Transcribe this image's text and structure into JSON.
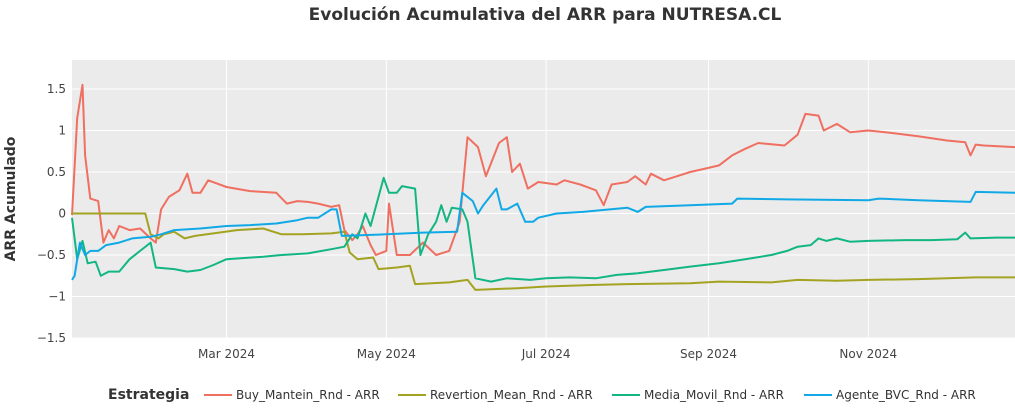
{
  "chart_data": {
    "type": "line",
    "title": "Evolución Acumulativa del ARR para NUTRESA.CL",
    "xlabel": "",
    "ylabel": "ARR Acumulado",
    "ylim": [
      -1.5,
      1.85
    ],
    "xlim": [
      "2024-01-02",
      "2024-12-27"
    ],
    "yticks": [
      -1.5,
      -1,
      -0.5,
      0,
      0.5,
      1,
      1.5
    ],
    "ytick_labels": [
      "−1.5",
      "−1",
      "−0.5",
      "0",
      "0.5",
      "1",
      "1.5"
    ],
    "xticks": [
      "2024-03-01",
      "2024-05-01",
      "2024-07-01",
      "2024-09-01",
      "2024-11-01"
    ],
    "xtick_labels": [
      "Mar 2024",
      "May 2024",
      "Jul 2024",
      "Sep 2024",
      "Nov 2024"
    ],
    "grid": true,
    "legend_title": "Estrategia",
    "legend_position": "bottom",
    "series": [
      {
        "name": "Buy_Mantein_Rnd - ARR",
        "color": "#EF6F61",
        "points": [
          [
            "2024-01-02",
            -0.02
          ],
          [
            "2024-01-04",
            1.15
          ],
          [
            "2024-01-06",
            1.55
          ],
          [
            "2024-01-07",
            0.7
          ],
          [
            "2024-01-09",
            0.18
          ],
          [
            "2024-01-12",
            0.15
          ],
          [
            "2024-01-14",
            -0.35
          ],
          [
            "2024-01-16",
            -0.2
          ],
          [
            "2024-01-18",
            -0.3
          ],
          [
            "2024-01-20",
            -0.15
          ],
          [
            "2024-01-24",
            -0.2
          ],
          [
            "2024-01-28",
            -0.18
          ],
          [
            "2024-02-01",
            -0.3
          ],
          [
            "2024-02-03",
            -0.35
          ],
          [
            "2024-02-05",
            0.05
          ],
          [
            "2024-02-08",
            0.2
          ],
          [
            "2024-02-12",
            0.28
          ],
          [
            "2024-02-15",
            0.48
          ],
          [
            "2024-02-17",
            0.25
          ],
          [
            "2024-02-20",
            0.25
          ],
          [
            "2024-02-23",
            0.4
          ],
          [
            "2024-03-01",
            0.32
          ],
          [
            "2024-03-10",
            0.27
          ],
          [
            "2024-03-20",
            0.25
          ],
          [
            "2024-03-24",
            0.12
          ],
          [
            "2024-03-28",
            0.15
          ],
          [
            "2024-04-01",
            0.14
          ],
          [
            "2024-04-05",
            0.12
          ],
          [
            "2024-04-10",
            0.08
          ],
          [
            "2024-04-13",
            0.1
          ],
          [
            "2024-04-15",
            -0.2
          ],
          [
            "2024-04-18",
            -0.32
          ],
          [
            "2024-04-20",
            -0.25
          ],
          [
            "2024-04-22",
            -0.15
          ],
          [
            "2024-04-25",
            -0.38
          ],
          [
            "2024-04-27",
            -0.5
          ],
          [
            "2024-05-01",
            -0.45
          ],
          [
            "2024-05-02",
            0.12
          ],
          [
            "2024-05-05",
            -0.5
          ],
          [
            "2024-05-10",
            -0.5
          ],
          [
            "2024-05-15",
            -0.35
          ],
          [
            "2024-05-20",
            -0.5
          ],
          [
            "2024-05-25",
            -0.45
          ],
          [
            "2024-05-29",
            -0.1
          ],
          [
            "2024-06-01",
            0.92
          ],
          [
            "2024-06-05",
            0.8
          ],
          [
            "2024-06-08",
            0.45
          ],
          [
            "2024-06-13",
            0.85
          ],
          [
            "2024-06-16",
            0.92
          ],
          [
            "2024-06-18",
            0.5
          ],
          [
            "2024-06-21",
            0.6
          ],
          [
            "2024-06-24",
            0.3
          ],
          [
            "2024-06-28",
            0.38
          ],
          [
            "2024-07-05",
            0.35
          ],
          [
            "2024-07-08",
            0.4
          ],
          [
            "2024-07-14",
            0.35
          ],
          [
            "2024-07-20",
            0.28
          ],
          [
            "2024-07-23",
            0.1
          ],
          [
            "2024-07-26",
            0.35
          ],
          [
            "2024-08-01",
            0.38
          ],
          [
            "2024-08-04",
            0.45
          ],
          [
            "2024-08-08",
            0.35
          ],
          [
            "2024-08-10",
            0.48
          ],
          [
            "2024-08-15",
            0.4
          ],
          [
            "2024-08-20",
            0.45
          ],
          [
            "2024-08-25",
            0.5
          ],
          [
            "2024-09-01",
            0.55
          ],
          [
            "2024-09-05",
            0.58
          ],
          [
            "2024-09-10",
            0.7
          ],
          [
            "2024-09-15",
            0.78
          ],
          [
            "2024-09-20",
            0.85
          ],
          [
            "2024-09-30",
            0.82
          ],
          [
            "2024-10-05",
            0.95
          ],
          [
            "2024-10-08",
            1.2
          ],
          [
            "2024-10-13",
            1.18
          ],
          [
            "2024-10-15",
            1.0
          ],
          [
            "2024-10-20",
            1.08
          ],
          [
            "2024-10-25",
            0.98
          ],
          [
            "2024-11-01",
            1.0
          ],
          [
            "2024-11-10",
            0.97
          ],
          [
            "2024-11-20",
            0.93
          ],
          [
            "2024-12-01",
            0.88
          ],
          [
            "2024-12-08",
            0.86
          ],
          [
            "2024-12-10",
            0.7
          ],
          [
            "2024-12-12",
            0.83
          ],
          [
            "2024-12-15",
            0.82
          ],
          [
            "2024-12-27",
            0.8
          ]
        ]
      },
      {
        "name": "Revertion_Mean_Rnd - ARR",
        "color": "#A3A321",
        "points": [
          [
            "2024-01-02",
            0.0
          ],
          [
            "2024-01-10",
            0.0
          ],
          [
            "2024-01-20",
            0.0
          ],
          [
            "2024-01-30",
            0.0
          ],
          [
            "2024-02-01",
            -0.25
          ],
          [
            "2024-02-04",
            -0.3
          ],
          [
            "2024-02-06",
            -0.25
          ],
          [
            "2024-02-10",
            -0.22
          ],
          [
            "2024-02-14",
            -0.3
          ],
          [
            "2024-02-18",
            -0.27
          ],
          [
            "2024-02-25",
            -0.24
          ],
          [
            "2024-03-05",
            -0.2
          ],
          [
            "2024-03-15",
            -0.18
          ],
          [
            "2024-03-22",
            -0.25
          ],
          [
            "2024-03-30",
            -0.25
          ],
          [
            "2024-04-10",
            -0.24
          ],
          [
            "2024-04-15",
            -0.22
          ],
          [
            "2024-04-17",
            -0.47
          ],
          [
            "2024-04-20",
            -0.55
          ],
          [
            "2024-04-26",
            -0.53
          ],
          [
            "2024-04-28",
            -0.67
          ],
          [
            "2024-05-05",
            -0.65
          ],
          [
            "2024-05-10",
            -0.63
          ],
          [
            "2024-05-12",
            -0.85
          ],
          [
            "2024-05-25",
            -0.83
          ],
          [
            "2024-06-01",
            -0.8
          ],
          [
            "2024-06-04",
            -0.92
          ],
          [
            "2024-06-20",
            -0.9
          ],
          [
            "2024-07-01",
            -0.88
          ],
          [
            "2024-07-20",
            -0.86
          ],
          [
            "2024-08-01",
            -0.85
          ],
          [
            "2024-08-25",
            -0.84
          ],
          [
            "2024-09-05",
            -0.82
          ],
          [
            "2024-09-25",
            -0.83
          ],
          [
            "2024-10-05",
            -0.8
          ],
          [
            "2024-10-20",
            -0.81
          ],
          [
            "2024-11-01",
            -0.8
          ],
          [
            "2024-11-20",
            -0.79
          ],
          [
            "2024-12-01",
            -0.78
          ],
          [
            "2024-12-12",
            -0.77
          ],
          [
            "2024-12-27",
            -0.77
          ]
        ]
      },
      {
        "name": "Media_Movil_Rnd - ARR",
        "color": "#12B683",
        "points": [
          [
            "2024-01-02",
            -0.05
          ],
          [
            "2024-01-04",
            -0.55
          ],
          [
            "2024-01-06",
            -0.33
          ],
          [
            "2024-01-08",
            -0.6
          ],
          [
            "2024-01-11",
            -0.58
          ],
          [
            "2024-01-13",
            -0.75
          ],
          [
            "2024-01-16",
            -0.7
          ],
          [
            "2024-01-20",
            -0.7
          ],
          [
            "2024-01-24",
            -0.55
          ],
          [
            "2024-01-28",
            -0.45
          ],
          [
            "2024-02-01",
            -0.35
          ],
          [
            "2024-02-03",
            -0.65
          ],
          [
            "2024-02-10",
            -0.67
          ],
          [
            "2024-02-15",
            -0.7
          ],
          [
            "2024-02-20",
            -0.68
          ],
          [
            "2024-02-25",
            -0.62
          ],
          [
            "2024-03-01",
            -0.55
          ],
          [
            "2024-03-15",
            -0.52
          ],
          [
            "2024-03-22",
            -0.5
          ],
          [
            "2024-04-01",
            -0.48
          ],
          [
            "2024-04-10",
            -0.43
          ],
          [
            "2024-04-15",
            -0.4
          ],
          [
            "2024-04-18",
            -0.25
          ],
          [
            "2024-04-20",
            -0.3
          ],
          [
            "2024-04-23",
            0.0
          ],
          [
            "2024-04-25",
            -0.15
          ],
          [
            "2024-04-28",
            0.2
          ],
          [
            "2024-04-30",
            0.43
          ],
          [
            "2024-05-02",
            0.25
          ],
          [
            "2024-05-05",
            0.25
          ],
          [
            "2024-05-07",
            0.33
          ],
          [
            "2024-05-12",
            0.3
          ],
          [
            "2024-05-14",
            -0.5
          ],
          [
            "2024-05-17",
            -0.25
          ],
          [
            "2024-05-20",
            -0.1
          ],
          [
            "2024-05-22",
            0.1
          ],
          [
            "2024-05-24",
            -0.1
          ],
          [
            "2024-05-26",
            0.07
          ],
          [
            "2024-05-30",
            0.05
          ],
          [
            "2024-06-01",
            -0.1
          ],
          [
            "2024-06-04",
            -0.78
          ],
          [
            "2024-06-10",
            -0.82
          ],
          [
            "2024-06-16",
            -0.78
          ],
          [
            "2024-06-25",
            -0.8
          ],
          [
            "2024-07-01",
            -0.78
          ],
          [
            "2024-07-10",
            -0.77
          ],
          [
            "2024-07-20",
            -0.78
          ],
          [
            "2024-07-28",
            -0.74
          ],
          [
            "2024-08-05",
            -0.72
          ],
          [
            "2024-08-15",
            -0.68
          ],
          [
            "2024-08-25",
            -0.64
          ],
          [
            "2024-09-05",
            -0.6
          ],
          [
            "2024-09-15",
            -0.55
          ],
          [
            "2024-09-25",
            -0.5
          ],
          [
            "2024-10-01",
            -0.45
          ],
          [
            "2024-10-05",
            -0.4
          ],
          [
            "2024-10-10",
            -0.38
          ],
          [
            "2024-10-13",
            -0.3
          ],
          [
            "2024-10-16",
            -0.33
          ],
          [
            "2024-10-20",
            -0.3
          ],
          [
            "2024-10-25",
            -0.34
          ],
          [
            "2024-11-01",
            -0.33
          ],
          [
            "2024-11-15",
            -0.32
          ],
          [
            "2024-11-25",
            -0.32
          ],
          [
            "2024-12-05",
            -0.31
          ],
          [
            "2024-12-08",
            -0.23
          ],
          [
            "2024-12-10",
            -0.3
          ],
          [
            "2024-12-20",
            -0.29
          ],
          [
            "2024-12-27",
            -0.29
          ]
        ]
      },
      {
        "name": "Agente_BVC_Rnd - ARR",
        "color": "#10A9E6",
        "points": [
          [
            "2024-01-02",
            -0.8
          ],
          [
            "2024-01-03",
            -0.75
          ],
          [
            "2024-01-05",
            -0.35
          ],
          [
            "2024-01-07",
            -0.5
          ],
          [
            "2024-01-09",
            -0.45
          ],
          [
            "2024-01-12",
            -0.45
          ],
          [
            "2024-01-15",
            -0.38
          ],
          [
            "2024-01-20",
            -0.35
          ],
          [
            "2024-01-25",
            -0.3
          ],
          [
            "2024-02-01",
            -0.28
          ],
          [
            "2024-02-05",
            -0.25
          ],
          [
            "2024-02-10",
            -0.2
          ],
          [
            "2024-02-20",
            -0.18
          ],
          [
            "2024-03-01",
            -0.15
          ],
          [
            "2024-03-10",
            -0.14
          ],
          [
            "2024-03-20",
            -0.12
          ],
          [
            "2024-03-28",
            -0.08
          ],
          [
            "2024-04-01",
            -0.05
          ],
          [
            "2024-04-05",
            -0.05
          ],
          [
            "2024-04-10",
            0.05
          ],
          [
            "2024-04-12",
            0.05
          ],
          [
            "2024-04-14",
            -0.27
          ],
          [
            "2024-05-01",
            -0.25
          ],
          [
            "2024-05-15",
            -0.23
          ],
          [
            "2024-05-28",
            -0.22
          ],
          [
            "2024-05-30",
            0.25
          ],
          [
            "2024-06-03",
            0.15
          ],
          [
            "2024-06-05",
            0.0
          ],
          [
            "2024-06-07",
            0.1
          ],
          [
            "2024-06-12",
            0.3
          ],
          [
            "2024-06-14",
            0.05
          ],
          [
            "2024-06-16",
            0.05
          ],
          [
            "2024-06-20",
            0.12
          ],
          [
            "2024-06-23",
            -0.1
          ],
          [
            "2024-06-26",
            -0.1
          ],
          [
            "2024-06-28",
            -0.05
          ],
          [
            "2024-07-05",
            0.0
          ],
          [
            "2024-07-15",
            0.02
          ],
          [
            "2024-08-01",
            0.07
          ],
          [
            "2024-08-05",
            0.02
          ],
          [
            "2024-08-08",
            0.08
          ],
          [
            "2024-08-25",
            0.1
          ],
          [
            "2024-09-10",
            0.12
          ],
          [
            "2024-09-12",
            0.18
          ],
          [
            "2024-10-01",
            0.17
          ],
          [
            "2024-11-01",
            0.16
          ],
          [
            "2024-11-05",
            0.18
          ],
          [
            "2024-11-20",
            0.16
          ],
          [
            "2024-12-10",
            0.14
          ],
          [
            "2024-12-12",
            0.26
          ],
          [
            "2024-12-27",
            0.25
          ]
        ]
      }
    ]
  }
}
